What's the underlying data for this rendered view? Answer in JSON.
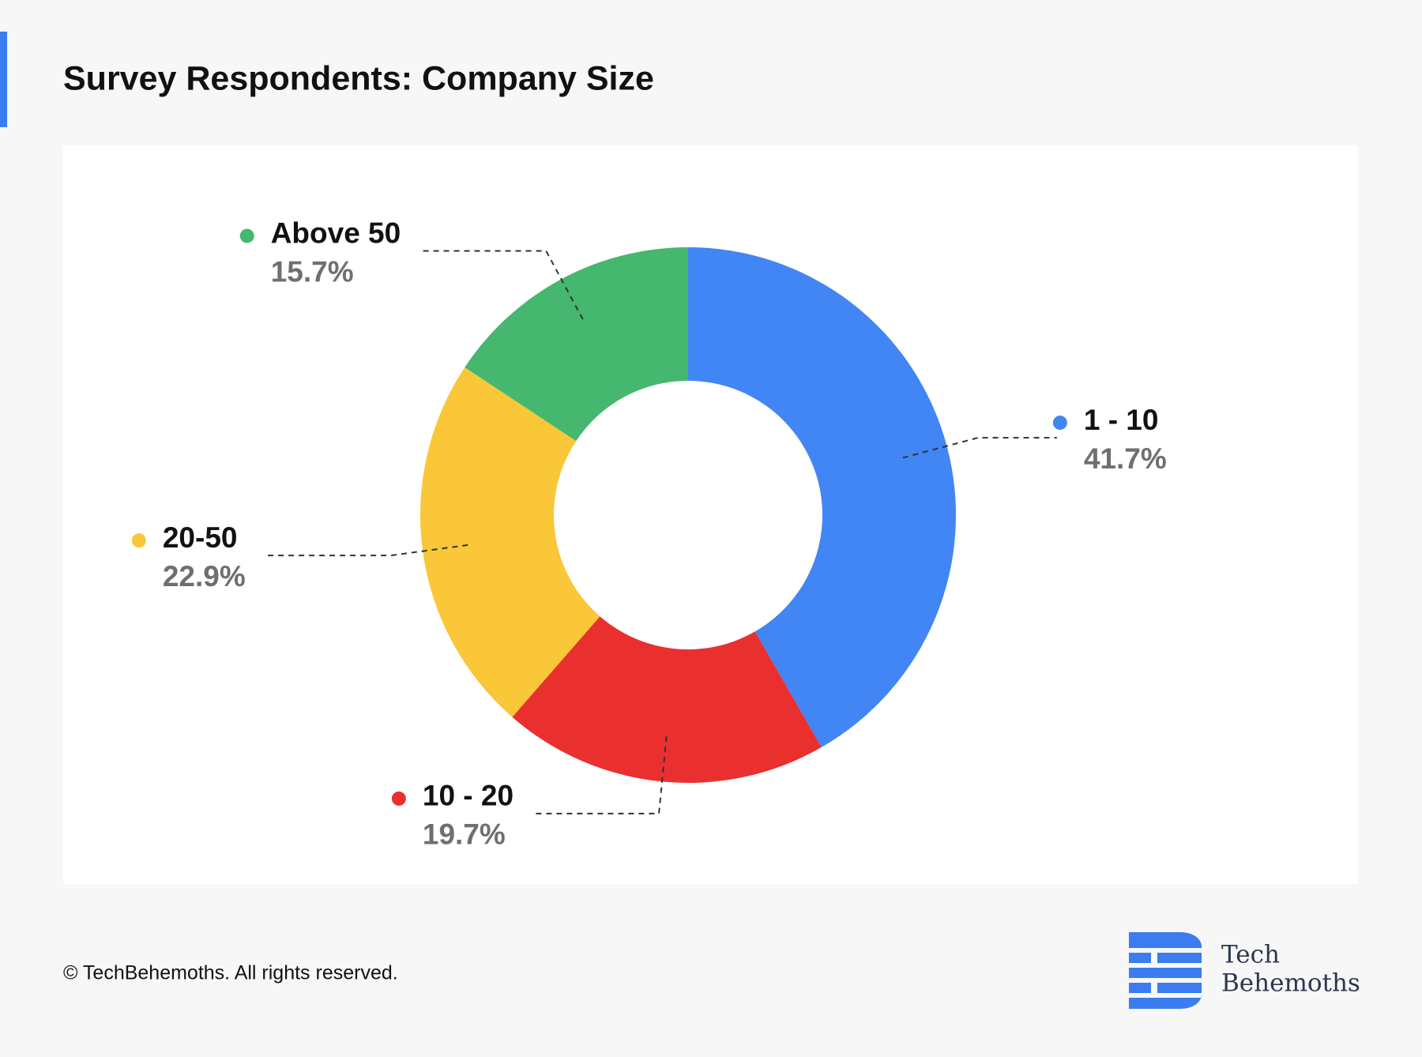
{
  "chart_data": {
    "type": "donut",
    "title": "Survey Respondents: Company Size",
    "categories": [
      "1 - 10",
      "10 - 20",
      "20-50",
      "Above 50"
    ],
    "values": [
      41.7,
      19.7,
      22.9,
      15.7
    ],
    "value_labels": [
      "41.7%",
      "19.7%",
      "22.9%",
      "15.7%"
    ],
    "colors": [
      "#4285f4",
      "#ea2f2f",
      "#f9c737",
      "#46b76e"
    ]
  },
  "footer": {
    "copyright": "© TechBehemoths. All rights reserved.",
    "logo": [
      "Tech",
      "Behemoths"
    ]
  }
}
